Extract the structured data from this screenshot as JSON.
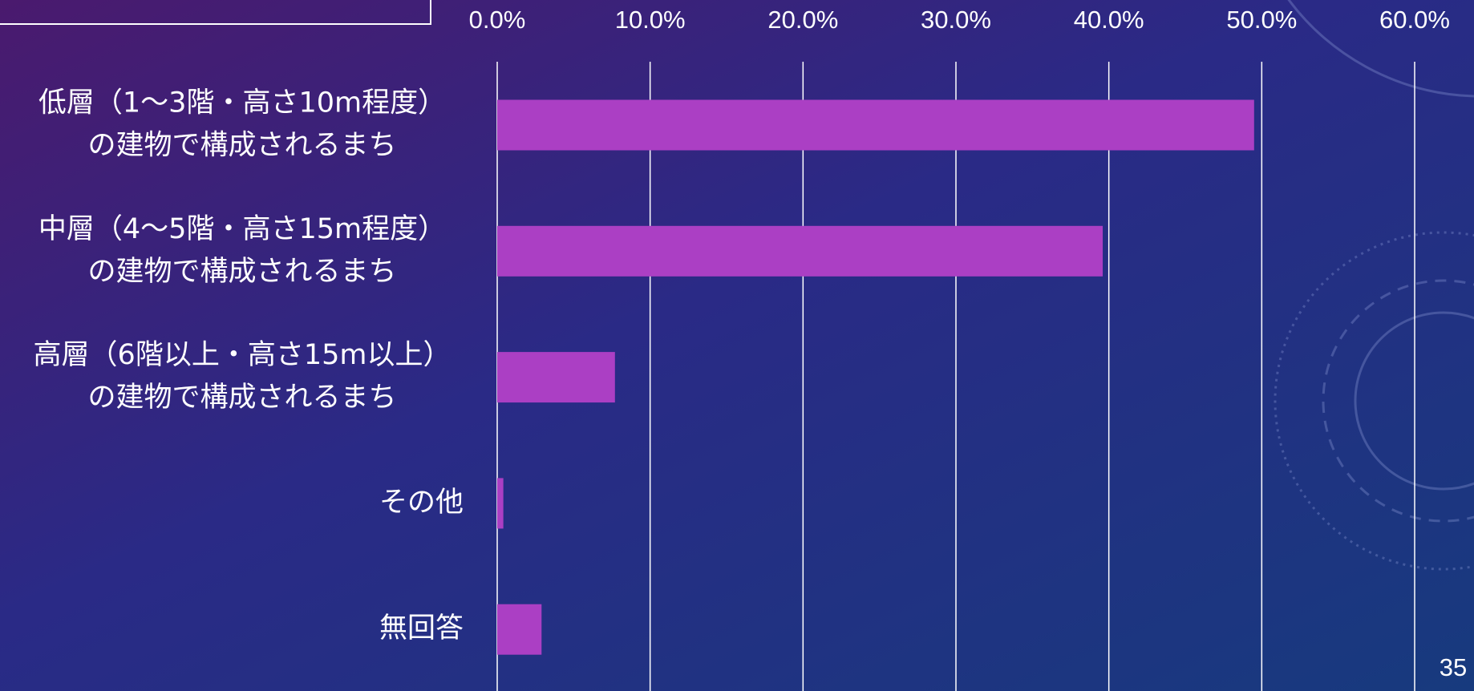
{
  "chart_data": {
    "type": "bar",
    "orientation": "horizontal",
    "categories": [
      [
        "低層（1～3階・高さ10m程度）",
        "の建物で構成されるまち"
      ],
      [
        "中層（4～5階・高さ15m程度）",
        "の建物で構成されるまち"
      ],
      [
        "高層（6階以上・高さ15m以上）",
        "の建物で構成されるまち"
      ],
      [
        "その他"
      ],
      [
        "無回答"
      ]
    ],
    "values": [
      49.5,
      39.6,
      7.7,
      0.4,
      2.9
    ],
    "color": "#ab3fc4",
    "xlim": [
      0,
      60
    ],
    "xticks": [
      {
        "value": 0,
        "label": "0.0%"
      },
      {
        "value": 10,
        "label": "10.0%"
      },
      {
        "value": 20,
        "label": "20.0%"
      },
      {
        "value": 30,
        "label": "30.0%"
      },
      {
        "value": 40,
        "label": "40.0%"
      },
      {
        "value": 50,
        "label": "50.0%"
      },
      {
        "value": 60,
        "label": "60.0%"
      }
    ],
    "grid": true
  },
  "page_number": "35"
}
